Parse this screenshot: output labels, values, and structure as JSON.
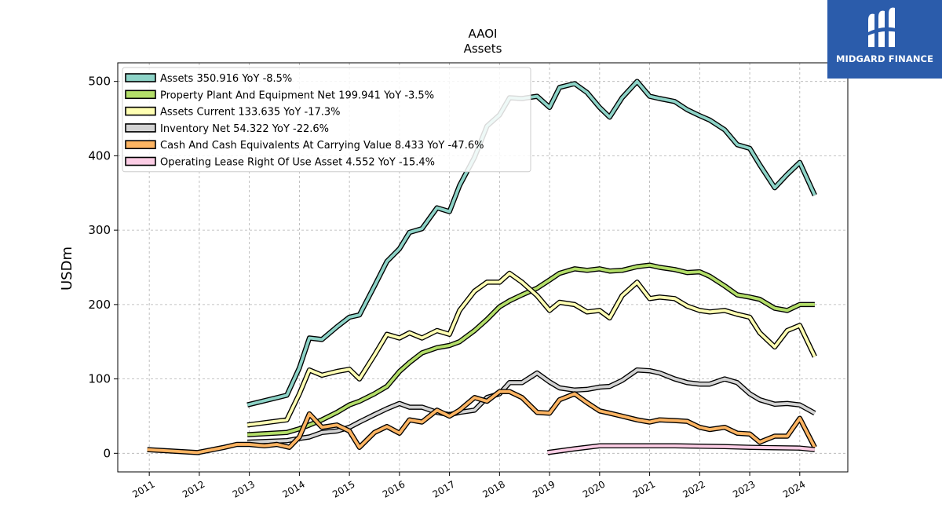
{
  "brand": {
    "name": "MIDGARD FINANCE",
    "bg_color": "#2b5cab"
  },
  "chart_data": {
    "type": "line",
    "title": "AAOI",
    "subtitle": "Assets",
    "ylabel": "USDm",
    "xlabel": "",
    "xlim": [
      2010.37,
      2024.96
    ],
    "ylim": [
      -25,
      525
    ],
    "yticks": [
      0,
      100,
      200,
      300,
      400,
      500
    ],
    "xticks": [
      "2011",
      "2012",
      "2013",
      "2014",
      "2015",
      "2016",
      "2017",
      "2018",
      "2019",
      "2020",
      "2021",
      "2022",
      "2023",
      "2024"
    ],
    "grid": true,
    "legend_position": "top-left",
    "series": [
      {
        "name": "Assets  350.916 YoY -8.5%",
        "color": "#8dd3c7",
        "points": [
          [
            2012.96,
            65
          ],
          [
            2013.75,
            78
          ],
          [
            2014.0,
            115
          ],
          [
            2014.2,
            155
          ],
          [
            2014.45,
            153
          ],
          [
            2014.75,
            170
          ],
          [
            2015.0,
            183
          ],
          [
            2015.2,
            186
          ],
          [
            2015.5,
            225
          ],
          [
            2015.75,
            258
          ],
          [
            2016.0,
            275
          ],
          [
            2016.2,
            297
          ],
          [
            2016.45,
            302
          ],
          [
            2016.75,
            330
          ],
          [
            2017.0,
            325
          ],
          [
            2017.2,
            360
          ],
          [
            2017.5,
            398
          ],
          [
            2017.75,
            440
          ],
          [
            2018.0,
            455
          ],
          [
            2018.2,
            478
          ],
          [
            2018.45,
            477
          ],
          [
            2018.75,
            480
          ],
          [
            2019.0,
            465
          ],
          [
            2019.2,
            492
          ],
          [
            2019.5,
            497
          ],
          [
            2019.75,
            485
          ],
          [
            2020.0,
            465
          ],
          [
            2020.2,
            452
          ],
          [
            2020.45,
            478
          ],
          [
            2020.75,
            500
          ],
          [
            2021.0,
            480
          ],
          [
            2021.2,
            477
          ],
          [
            2021.5,
            473
          ],
          [
            2021.75,
            462
          ],
          [
            2022.0,
            454
          ],
          [
            2022.2,
            448
          ],
          [
            2022.5,
            435
          ],
          [
            2022.75,
            415
          ],
          [
            2023.0,
            410
          ],
          [
            2023.2,
            388
          ],
          [
            2023.5,
            357
          ],
          [
            2023.75,
            375
          ],
          [
            2024.0,
            391
          ],
          [
            2024.3,
            347
          ]
        ]
      },
      {
        "name": "Property Plant And Equipment Net  199.941 YoY -3.5%",
        "color": "#b3de69",
        "points": [
          [
            2012.96,
            25
          ],
          [
            2013.75,
            28
          ],
          [
            2014.0,
            33
          ],
          [
            2014.2,
            38
          ],
          [
            2014.45,
            45
          ],
          [
            2014.75,
            55
          ],
          [
            2015.0,
            65
          ],
          [
            2015.2,
            70
          ],
          [
            2015.5,
            80
          ],
          [
            2015.75,
            90
          ],
          [
            2016.0,
            110
          ],
          [
            2016.2,
            122
          ],
          [
            2016.45,
            135
          ],
          [
            2016.75,
            142
          ],
          [
            2017.0,
            145
          ],
          [
            2017.2,
            150
          ],
          [
            2017.5,
            165
          ],
          [
            2017.75,
            180
          ],
          [
            2018.0,
            197
          ],
          [
            2018.2,
            205
          ],
          [
            2018.45,
            213
          ],
          [
            2018.75,
            222
          ],
          [
            2019.0,
            233
          ],
          [
            2019.2,
            242
          ],
          [
            2019.5,
            248
          ],
          [
            2019.75,
            246
          ],
          [
            2020.0,
            248
          ],
          [
            2020.2,
            245
          ],
          [
            2020.45,
            246
          ],
          [
            2020.75,
            251
          ],
          [
            2021.0,
            253
          ],
          [
            2021.2,
            250
          ],
          [
            2021.5,
            247
          ],
          [
            2021.75,
            243
          ],
          [
            2022.0,
            244
          ],
          [
            2022.2,
            238
          ],
          [
            2022.5,
            225
          ],
          [
            2022.75,
            213
          ],
          [
            2023.0,
            210
          ],
          [
            2023.2,
            207
          ],
          [
            2023.5,
            195
          ],
          [
            2023.75,
            192
          ],
          [
            2024.0,
            200
          ],
          [
            2024.3,
            200
          ]
        ]
      },
      {
        "name": "Assets Current  133.635 YoY -17.3%",
        "color": "#ffffb3",
        "points": [
          [
            2012.96,
            38
          ],
          [
            2013.75,
            45
          ],
          [
            2014.0,
            80
          ],
          [
            2014.2,
            112
          ],
          [
            2014.45,
            105
          ],
          [
            2014.75,
            110
          ],
          [
            2015.0,
            113
          ],
          [
            2015.2,
            100
          ],
          [
            2015.5,
            132
          ],
          [
            2015.75,
            160
          ],
          [
            2016.0,
            155
          ],
          [
            2016.2,
            162
          ],
          [
            2016.45,
            155
          ],
          [
            2016.75,
            165
          ],
          [
            2017.0,
            160
          ],
          [
            2017.2,
            192
          ],
          [
            2017.5,
            218
          ],
          [
            2017.75,
            230
          ],
          [
            2018.0,
            230
          ],
          [
            2018.2,
            242
          ],
          [
            2018.45,
            230
          ],
          [
            2018.75,
            212
          ],
          [
            2019.0,
            192
          ],
          [
            2019.2,
            203
          ],
          [
            2019.5,
            200
          ],
          [
            2019.75,
            190
          ],
          [
            2020.0,
            192
          ],
          [
            2020.2,
            182
          ],
          [
            2020.45,
            212
          ],
          [
            2020.75,
            230
          ],
          [
            2021.0,
            208
          ],
          [
            2021.2,
            210
          ],
          [
            2021.5,
            208
          ],
          [
            2021.75,
            198
          ],
          [
            2022.0,
            192
          ],
          [
            2022.2,
            190
          ],
          [
            2022.5,
            192
          ],
          [
            2022.75,
            187
          ],
          [
            2023.0,
            183
          ],
          [
            2023.2,
            162
          ],
          [
            2023.5,
            143
          ],
          [
            2023.75,
            165
          ],
          [
            2024.0,
            172
          ],
          [
            2024.3,
            130
          ]
        ]
      },
      {
        "name": "Inventory Net  54.322 YoY -22.6%",
        "color": "#d3d3d3",
        "points": [
          [
            2012.96,
            15
          ],
          [
            2013.75,
            17
          ],
          [
            2014.0,
            20
          ],
          [
            2014.2,
            22
          ],
          [
            2014.45,
            28
          ],
          [
            2014.75,
            30
          ],
          [
            2015.0,
            35
          ],
          [
            2015.2,
            42
          ],
          [
            2015.5,
            52
          ],
          [
            2015.75,
            60
          ],
          [
            2016.0,
            67
          ],
          [
            2016.2,
            62
          ],
          [
            2016.45,
            62
          ],
          [
            2016.75,
            55
          ],
          [
            2017.0,
            52
          ],
          [
            2017.2,
            55
          ],
          [
            2017.5,
            58
          ],
          [
            2017.75,
            75
          ],
          [
            2018.0,
            80
          ],
          [
            2018.2,
            95
          ],
          [
            2018.45,
            95
          ],
          [
            2018.75,
            108
          ],
          [
            2019.0,
            96
          ],
          [
            2019.2,
            88
          ],
          [
            2019.5,
            85
          ],
          [
            2019.75,
            86
          ],
          [
            2020.0,
            89
          ],
          [
            2020.2,
            90
          ],
          [
            2020.45,
            98
          ],
          [
            2020.75,
            112
          ],
          [
            2021.0,
            111
          ],
          [
            2021.2,
            108
          ],
          [
            2021.5,
            100
          ],
          [
            2021.75,
            95
          ],
          [
            2022.0,
            93
          ],
          [
            2022.2,
            93
          ],
          [
            2022.5,
            100
          ],
          [
            2022.75,
            95
          ],
          [
            2023.0,
            80
          ],
          [
            2023.2,
            72
          ],
          [
            2023.5,
            66
          ],
          [
            2023.75,
            67
          ],
          [
            2024.0,
            65
          ],
          [
            2024.3,
            54
          ]
        ]
      },
      {
        "name": "Cash And Cash Equivalents At Carrying Value  8.433 YoY -47.6%",
        "color": "#fdb462",
        "points": [
          [
            2010.96,
            5
          ],
          [
            2011.96,
            1
          ],
          [
            2012.5,
            8
          ],
          [
            2012.75,
            12
          ],
          [
            2013.0,
            12
          ],
          [
            2013.3,
            10
          ],
          [
            2013.55,
            12
          ],
          [
            2013.8,
            8
          ],
          [
            2014.0,
            22
          ],
          [
            2014.2,
            53
          ],
          [
            2014.45,
            35
          ],
          [
            2014.75,
            38
          ],
          [
            2015.0,
            30
          ],
          [
            2015.2,
            8
          ],
          [
            2015.5,
            28
          ],
          [
            2015.75,
            36
          ],
          [
            2016.0,
            27
          ],
          [
            2016.2,
            45
          ],
          [
            2016.45,
            42
          ],
          [
            2016.75,
            58
          ],
          [
            2017.0,
            50
          ],
          [
            2017.2,
            58
          ],
          [
            2017.5,
            75
          ],
          [
            2017.75,
            70
          ],
          [
            2018.0,
            83
          ],
          [
            2018.2,
            83
          ],
          [
            2018.45,
            75
          ],
          [
            2018.75,
            55
          ],
          [
            2019.0,
            54
          ],
          [
            2019.2,
            72
          ],
          [
            2019.5,
            80
          ],
          [
            2019.75,
            68
          ],
          [
            2020.0,
            57
          ],
          [
            2020.2,
            54
          ],
          [
            2020.45,
            50
          ],
          [
            2020.75,
            45
          ],
          [
            2021.0,
            42
          ],
          [
            2021.2,
            45
          ],
          [
            2021.5,
            44
          ],
          [
            2021.75,
            43
          ],
          [
            2022.0,
            35
          ],
          [
            2022.2,
            32
          ],
          [
            2022.5,
            35
          ],
          [
            2022.75,
            27
          ],
          [
            2023.0,
            26
          ],
          [
            2023.2,
            15
          ],
          [
            2023.5,
            23
          ],
          [
            2023.75,
            23
          ],
          [
            2024.0,
            47
          ],
          [
            2024.3,
            8
          ]
        ]
      },
      {
        "name": "Operating Lease Right Of Use Asset  4.552 YoY -15.4%",
        "color": "#fccde5",
        "points": [
          [
            2018.96,
            1
          ],
          [
            2019.5,
            6
          ],
          [
            2020.0,
            10
          ],
          [
            2020.5,
            10
          ],
          [
            2021.0,
            10
          ],
          [
            2021.5,
            10
          ],
          [
            2022.0,
            9.5
          ],
          [
            2022.5,
            9
          ],
          [
            2023.0,
            8
          ],
          [
            2023.5,
            7.5
          ],
          [
            2024.0,
            7
          ],
          [
            2024.3,
            5
          ]
        ]
      }
    ]
  }
}
